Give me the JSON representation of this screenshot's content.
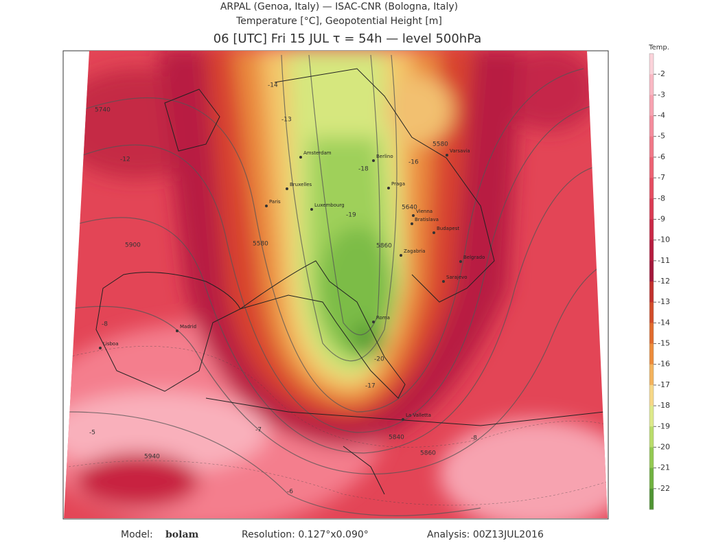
{
  "header": {
    "line1": "ARPAL (Genoa, Italy)  —  ISAC-CNR (Bologna, Italy)",
    "line2": "Temperature [°C], Geopotential Height [m]",
    "line3": "06 [UTC] Fri 15 JUL   τ = 54h   —   level 500hPa"
  },
  "colorbar": {
    "title": "Temp.",
    "ticks": [
      -2,
      -3,
      -4,
      -5,
      -6,
      -7,
      -8,
      -9,
      -10,
      -11,
      -12,
      -13,
      -14,
      -15,
      -16,
      -17,
      -18,
      -19,
      -20,
      -21,
      -22
    ]
  },
  "map": {
    "cities": [
      "Madrid",
      "Lisboa",
      "Paris",
      "Bruxelles",
      "Amsterdam",
      "Luxembourg",
      "Berlino",
      "Praga",
      "Vienna",
      "Bratislava",
      "Budapest",
      "Varsavia",
      "Zagabria",
      "Sarajevo",
      "Roma",
      "La Valletta",
      "Belgrado"
    ],
    "contour_labels": [
      "5740",
      "5580",
      "5640",
      "5860",
      "5900",
      "5940",
      "5840",
      "5860",
      "5580",
      "-14",
      "-13",
      "-12",
      "-18",
      "-19",
      "-16",
      "-20",
      "-17",
      "-8",
      "-7",
      "-6",
      "-5",
      "-8"
    ]
  },
  "footer": {
    "model_label": "Model:",
    "model": "bolam",
    "resolution": "Resolution: 0.127°x0.090°",
    "analysis": "Analysis: 00Z13JUL2016"
  }
}
